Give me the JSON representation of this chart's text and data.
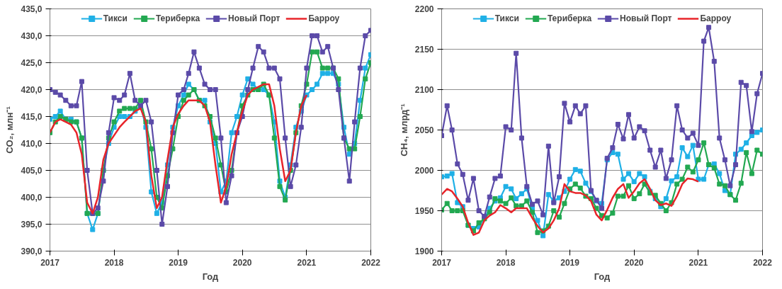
{
  "chart_data": [
    {
      "type": "line",
      "xlabel": "Год",
      "ylabel": "CO₂, млн⁻¹",
      "x": [
        "2017-01",
        "2017-02",
        "2017-03",
        "2017-04",
        "2017-05",
        "2017-06",
        "2017-07",
        "2017-08",
        "2017-09",
        "2017-10",
        "2017-11",
        "2017-12",
        "2018-01",
        "2018-02",
        "2018-03",
        "2018-04",
        "2018-05",
        "2018-06",
        "2018-07",
        "2018-08",
        "2018-09",
        "2018-10",
        "2018-11",
        "2018-12",
        "2019-01",
        "2019-02",
        "2019-03",
        "2019-04",
        "2019-05",
        "2019-06",
        "2019-07",
        "2019-08",
        "2019-09",
        "2019-10",
        "2019-11",
        "2019-12",
        "2020-01",
        "2020-02",
        "2020-03",
        "2020-04",
        "2020-05",
        "2020-06",
        "2020-07",
        "2020-08",
        "2020-09",
        "2020-10",
        "2020-11",
        "2020-12",
        "2021-01",
        "2021-02",
        "2021-03",
        "2021-04",
        "2021-05",
        "2021-06",
        "2021-07",
        "2021-08",
        "2021-09",
        "2021-10",
        "2021-11",
        "2021-12",
        "2022-01"
      ],
      "xlim": [
        "2017",
        "2022"
      ],
      "xticks": [
        "2017",
        "2018",
        "2019",
        "2020",
        "2021",
        "2022"
      ],
      "ylim": [
        390,
        435
      ],
      "yticks": [
        {
          "value": 390,
          "label": "390,0"
        },
        {
          "value": 395,
          "label": "395,0"
        },
        {
          "value": 400,
          "label": "400,0"
        },
        {
          "value": 405,
          "label": "405,0"
        },
        {
          "value": 410,
          "label": "410,0"
        },
        {
          "value": 415,
          "label": "415,0"
        },
        {
          "value": 420,
          "label": "420,0"
        },
        {
          "value": 425,
          "label": "425,0"
        },
        {
          "value": 430,
          "label": "430,0"
        },
        {
          "value": 435,
          "label": "435,0"
        }
      ],
      "grid": "y",
      "legend": "top",
      "marker": "square",
      "line_style": "solid",
      "series": [
        {
          "name": "Тикси",
          "color": "#1fb0e6",
          "values": [
            414.5,
            415,
            416,
            414.5,
            414.5,
            414,
            411,
            397,
            394,
            397,
            405,
            410,
            413,
            415,
            415,
            415,
            416,
            417,
            413,
            401,
            397,
            399,
            406,
            413,
            417,
            419,
            421,
            420,
            418,
            418,
            414,
            410,
            401,
            403,
            412,
            415,
            419,
            422,
            421,
            420,
            420,
            419,
            414,
            403,
            400,
            406,
            413,
            416,
            419,
            420,
            421,
            423,
            423,
            423,
            421,
            413,
            408,
            410,
            418,
            424,
            426.5
          ]
        },
        {
          "name": "Териберка",
          "color": "#22a851",
          "values": [
            412,
            414,
            415,
            414.5,
            414,
            414,
            411,
            397,
            397,
            397,
            405,
            411,
            414,
            416,
            416.5,
            416.5,
            416.5,
            418,
            414,
            409,
            400,
            398,
            404,
            409,
            415,
            418,
            419,
            420,
            418,
            417,
            415,
            411,
            406,
            401,
            405,
            412,
            417,
            419,
            420,
            420,
            421,
            419,
            411,
            402,
            399.5,
            405,
            412,
            417,
            421,
            427,
            427,
            424,
            424,
            424,
            422,
            411,
            409,
            409,
            415,
            422,
            425
          ]
        },
        {
          "name": "Новый Порт",
          "color": "#5b4aa8",
          "values": [
            420,
            419.5,
            419,
            418,
            417,
            417,
            421.5,
            405,
            397,
            398,
            403,
            412,
            418.5,
            418,
            419,
            423,
            418,
            417,
            418,
            414,
            405,
            395,
            402,
            412,
            419,
            420,
            423,
            427,
            424,
            421,
            420,
            420,
            411,
            399,
            404,
            412,
            415,
            420,
            424,
            428,
            427,
            424,
            424,
            422,
            411,
            402,
            406,
            413,
            424,
            430,
            430,
            427,
            428,
            424,
            420,
            411,
            403,
            414,
            424,
            430,
            431
          ]
        },
        {
          "name": "Барроу",
          "color": "#e8242a",
          "marker": "none",
          "values": [
            412,
            414,
            414.5,
            414,
            413.5,
            412,
            408,
            399,
            397,
            400,
            407,
            410,
            411.5,
            413,
            414,
            415,
            416,
            416.5,
            414,
            404,
            398,
            400,
            407,
            413,
            415.5,
            417,
            418,
            418,
            418,
            417,
            414,
            406,
            399,
            402,
            408,
            412,
            416,
            419,
            420,
            420.5,
            421,
            421,
            417,
            409,
            403,
            405,
            412,
            417,
            419,
            null,
            null,
            null,
            null,
            null,
            null,
            null,
            null,
            null,
            null,
            null,
            null
          ]
        }
      ]
    },
    {
      "type": "line",
      "xlabel": "Год",
      "ylabel": "CH₄, млрд⁻¹",
      "x": [
        "2017-01",
        "2017-02",
        "2017-03",
        "2017-04",
        "2017-05",
        "2017-06",
        "2017-07",
        "2017-08",
        "2017-09",
        "2017-10",
        "2017-11",
        "2017-12",
        "2018-01",
        "2018-02",
        "2018-03",
        "2018-04",
        "2018-05",
        "2018-06",
        "2018-07",
        "2018-08",
        "2018-09",
        "2018-10",
        "2018-11",
        "2018-12",
        "2019-01",
        "2019-02",
        "2019-03",
        "2019-04",
        "2019-05",
        "2019-06",
        "2019-07",
        "2019-08",
        "2019-09",
        "2019-10",
        "2019-11",
        "2019-12",
        "2020-01",
        "2020-02",
        "2020-03",
        "2020-04",
        "2020-05",
        "2020-06",
        "2020-07",
        "2020-08",
        "2020-09",
        "2020-10",
        "2020-11",
        "2020-12",
        "2021-01",
        "2021-02",
        "2021-03",
        "2021-04",
        "2021-05",
        "2021-06",
        "2021-07",
        "2021-08",
        "2021-09",
        "2021-10",
        "2021-11",
        "2021-12",
        "2022-01"
      ],
      "xlim": [
        "2017",
        "2022"
      ],
      "xticks": [
        "2017",
        "2018",
        "2019",
        "2020",
        "2021",
        "2022"
      ],
      "ylim": [
        1900,
        2200
      ],
      "yticks": [
        1900,
        1950,
        2000,
        2050,
        2100,
        2150,
        2200
      ],
      "grid": "y",
      "legend": "top",
      "marker": "square",
      "line_style": "solid",
      "series": [
        {
          "name": "Тикси",
          "color": "#1fb0e6",
          "values": [
            1992,
            1993,
            1996,
            1960,
            1955,
            1932,
            1928,
            1930,
            1941,
            1953,
            1962,
            1966,
            1980,
            1977,
            1965,
            1971,
            1977,
            1953,
            1938,
            1919,
            1970,
            1962,
            1966,
            1974,
            1989,
            2001,
            1999,
            1984,
            1974,
            1962,
            1959,
            2013,
            2022,
            2020,
            1989,
            1996,
            1986,
            1996,
            1992,
            1974,
            1965,
            1955,
            1965,
            1987,
            1992,
            2028,
            2017,
            2031,
            1989,
            1989,
            2007,
            2008,
            1996,
            1975,
            1970,
            2020,
            2026,
            2034,
            2043,
            2047,
            2050
          ]
        },
        {
          "name": "Териберка",
          "color": "#22a851",
          "values": [
            1951,
            1959,
            1950,
            1950,
            1950,
            1932,
            1925,
            1935,
            1940,
            1948,
            1965,
            1962,
            1959,
            1966,
            1956,
            1956,
            1962,
            1948,
            1923,
            1925,
            1931,
            1950,
            1942,
            1959,
            1977,
            1983,
            1978,
            1968,
            1965,
            1953,
            1944,
            1941,
            1947,
            1968,
            1968,
            1981,
            1965,
            1971,
            1983,
            1972,
            1969,
            1959,
            1950,
            1960,
            1983,
            1989,
            2004,
            1998,
            2013,
            2034,
            2007,
            2003,
            1983,
            1981,
            1970,
            1963,
            1984,
            2022,
            1996,
            2025,
            2020
          ]
        },
        {
          "name": "Новый Порт",
          "color": "#5b4aa8",
          "values": [
            2043,
            2080,
            2050,
            2008,
            1995,
            1963,
            1990,
            1950,
            1943,
            1967,
            1990,
            1993,
            2054,
            2050,
            2145,
            2040,
            1980,
            1958,
            1962,
            1945,
            2030,
            1960,
            1992,
            2083,
            2060,
            2080,
            2070,
            2080,
            1975,
            1963,
            1953,
            2015,
            2028,
            2057,
            2039,
            2069,
            2040,
            2054,
            2049,
            2025,
            2004,
            2025,
            1990,
            2013,
            2080,
            2050,
            2040,
            2046,
            2031,
            2160,
            2177,
            2135,
            2040,
            2013,
            1981,
            2007,
            2109,
            2105,
            2048,
            2095,
            2120
          ]
        },
        {
          "name": "Барроу",
          "color": "#e8242a",
          "marker": "none",
          "values": [
            1970,
            1977,
            1974,
            1965,
            1955,
            1935,
            1920,
            1923,
            1938,
            1944,
            1948,
            1957,
            1953,
            1948,
            1953,
            1953,
            1953,
            1941,
            1931,
            1923,
            1928,
            1938,
            1953,
            1983,
            1974,
            1972,
            1972,
            1969,
            1962,
            1945,
            1938,
            1951,
            1966,
            1977,
            1983,
            1966,
            1974,
            1984,
            1989,
            1977,
            1963,
            1957,
            1959,
            1956,
            1968,
            1983,
            1990,
            1989,
            1986,
            null,
            null,
            null,
            null,
            null,
            null,
            null,
            null,
            null,
            null,
            null,
            null
          ]
        }
      ]
    }
  ]
}
